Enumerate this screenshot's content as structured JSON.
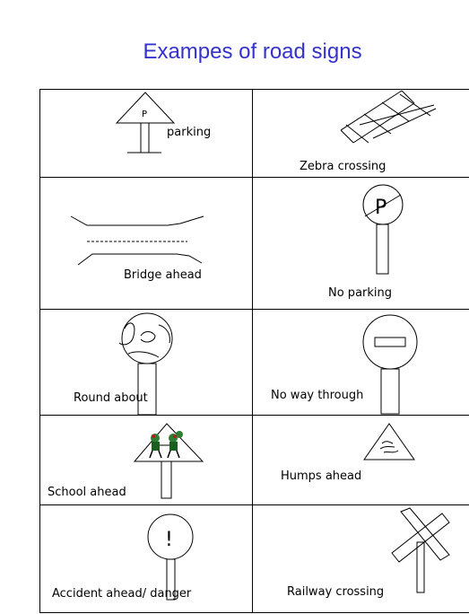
{
  "title": "Exampes of road signs",
  "signs": [
    {
      "label": "parking",
      "icon": "parking-sign-icon",
      "glyph": "P"
    },
    {
      "label": "Zebra crossing",
      "icon": "zebra-crossing-sign-icon"
    },
    {
      "label": "Bridge ahead",
      "icon": "bridge-ahead-sign-icon"
    },
    {
      "label": "No parking",
      "icon": "no-parking-sign-icon",
      "glyph": "P"
    },
    {
      "label": "Round about",
      "icon": "roundabout-sign-icon"
    },
    {
      "label": "No way through",
      "icon": "no-way-through-sign-icon"
    },
    {
      "label": "School ahead",
      "icon": "school-ahead-sign-icon"
    },
    {
      "label": "Humps ahead",
      "icon": "humps-ahead-sign-icon"
    },
    {
      "label": "Accident ahead/ danger",
      "icon": "danger-sign-icon",
      "glyph": "!"
    },
    {
      "label": "Railway crossing",
      "icon": "railway-crossing-sign-icon"
    }
  ]
}
